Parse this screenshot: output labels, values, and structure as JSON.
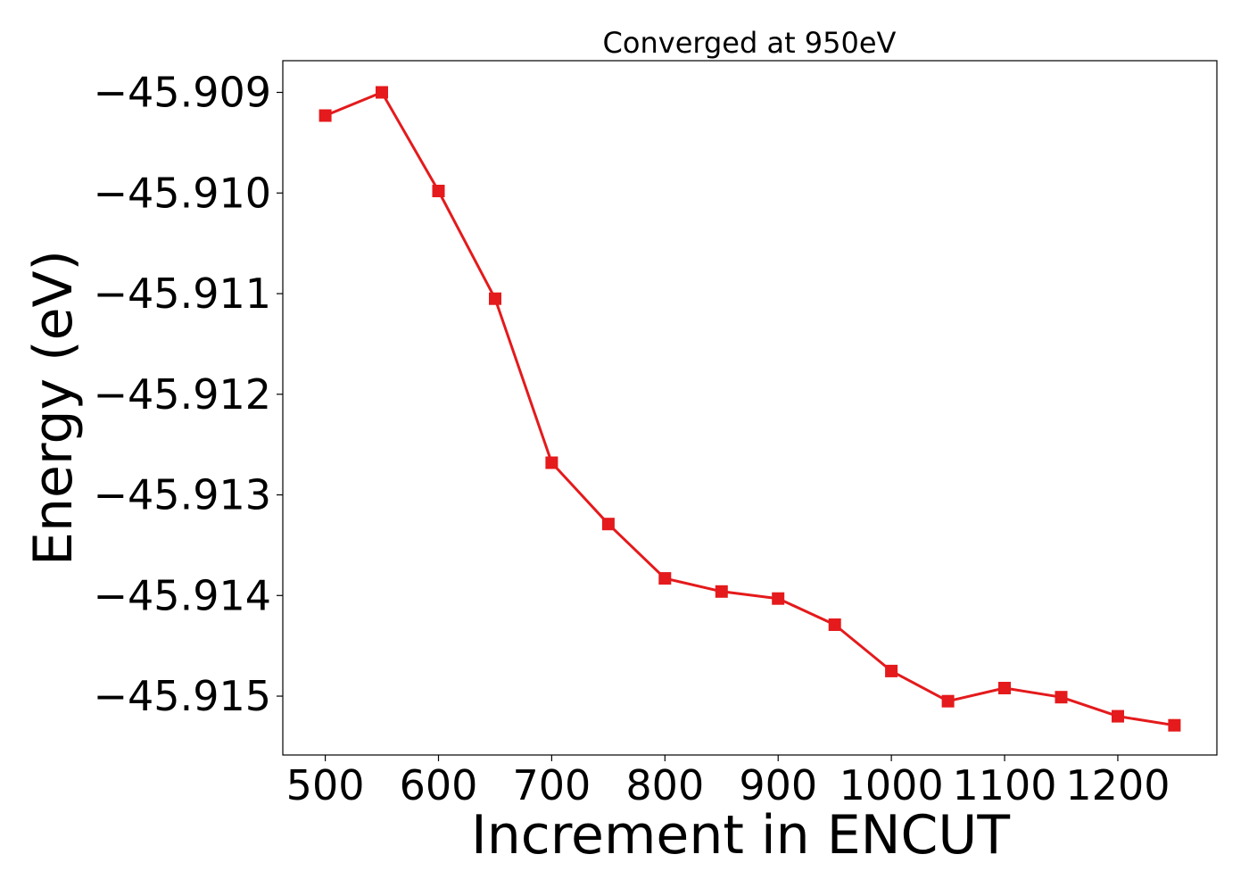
{
  "chart_data": {
    "type": "line",
    "title": "Converged at 950eV",
    "xlabel": "Increment in ENCUT",
    "ylabel": "Energy (eV)",
    "x": [
      500,
      550,
      600,
      650,
      700,
      750,
      800,
      850,
      900,
      950,
      1000,
      1050,
      1100,
      1150,
      1200,
      1250
    ],
    "series": [
      {
        "values": [
          -45.90923,
          -45.909,
          -45.90998,
          -45.91105,
          -45.91268,
          -45.91329,
          -45.91383,
          -45.91396,
          -45.91403,
          -45.91429,
          -45.91475,
          -45.91505,
          -45.91492,
          -45.91501,
          -45.9152,
          -45.91529
        ],
        "color": "#e41a1c",
        "marker": "square"
      }
    ],
    "xticks": [
      500,
      600,
      700,
      800,
      900,
      1000,
      1100,
      1200
    ],
    "xtick_labels": [
      "500",
      "600",
      "700",
      "800",
      "900",
      "1000",
      "1100",
      "1200"
    ],
    "yticks": [
      -45.909,
      -45.91,
      -45.911,
      -45.912,
      -45.913,
      -45.914,
      -45.915
    ],
    "ytick_labels": [
      "−45.909",
      "−45.910",
      "−45.911",
      "−45.912",
      "−45.913",
      "−45.914",
      "−45.915"
    ],
    "xlim": [
      462.5,
      1287.5
    ],
    "ylim": [
      -45.915585,
      -45.908685
    ],
    "grid": false,
    "legend": false
  }
}
